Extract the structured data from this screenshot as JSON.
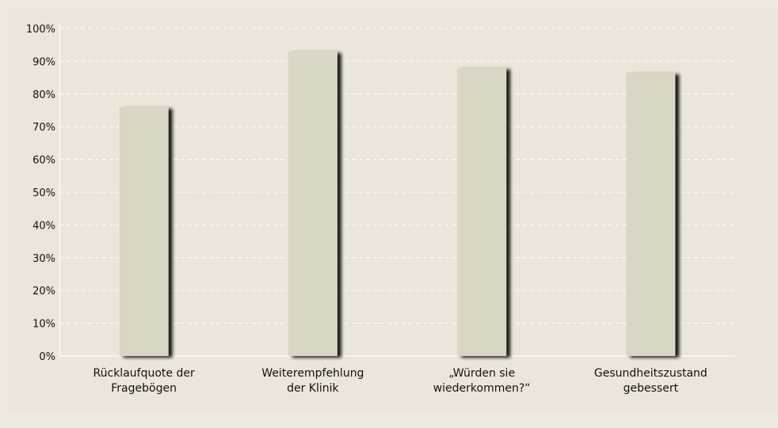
{
  "chart_data": {
    "type": "bar",
    "categories": [
      [
        "Rücklaufquote der",
        "Fragebögen"
      ],
      [
        "Weiterempfehlung",
        "der Klinik"
      ],
      [
        "„Würden sie",
        "wiederkommen?“"
      ],
      [
        "Gesundheitszustand",
        "gebessert"
      ]
    ],
    "values": [
      76,
      93,
      88,
      86.5
    ],
    "y_ticks": [
      "0%",
      "10%",
      "20%",
      "30%",
      "40%",
      "50%",
      "60%",
      "70%",
      "80%",
      "90%",
      "100%"
    ],
    "ylim": [
      0,
      100
    ],
    "grid": true,
    "legend": "none",
    "colors": {
      "background": "#efeadf",
      "panel": "#ebe6d9",
      "bar": "#d9d6c3",
      "bar_shadow": "#1a1a1a",
      "grid": "#ffffff",
      "axis": "#ffffff",
      "text": "#111111"
    }
  }
}
